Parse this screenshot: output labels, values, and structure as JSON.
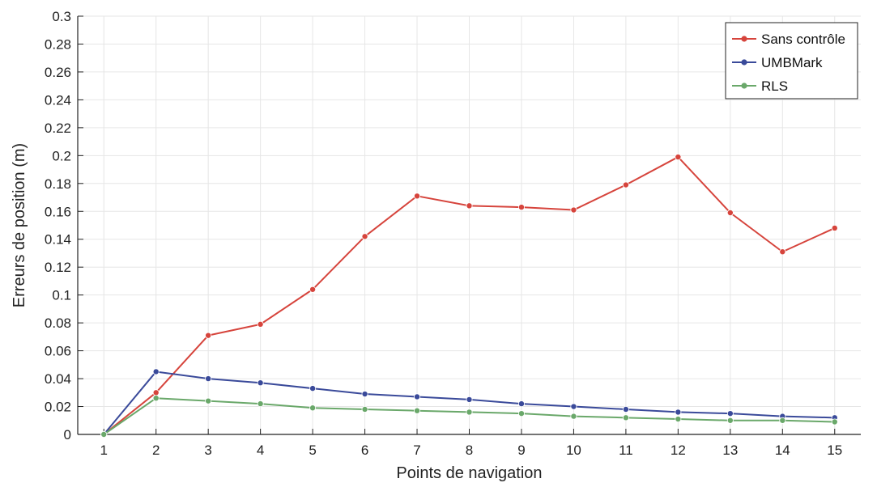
{
  "chart_data": {
    "type": "line",
    "xlabel": "Points de navigation",
    "ylabel": "Erreurs de position (m)",
    "x": [
      1,
      2,
      3,
      4,
      5,
      6,
      7,
      8,
      9,
      10,
      11,
      12,
      13,
      14,
      15
    ],
    "xlim": [
      0.5,
      15.5
    ],
    "ylim": [
      0,
      0.3
    ],
    "x_ticks": [
      "1",
      "2",
      "3",
      "4",
      "5",
      "6",
      "7",
      "8",
      "9",
      "10",
      "11",
      "12",
      "13",
      "14",
      "15"
    ],
    "y_ticks": [
      "0",
      "0.02",
      "0.04",
      "0.06",
      "0.08",
      "0.1",
      "0.12",
      "0.14",
      "0.16",
      "0.18",
      "0.2",
      "0.22",
      "0.24",
      "0.26",
      "0.28",
      "0.3"
    ],
    "grid": true,
    "legend_position": "top-right",
    "series": [
      {
        "name": "Sans contrôle",
        "color": "#d6443c",
        "values": [
          0,
          0.03,
          0.071,
          0.079,
          0.104,
          0.142,
          0.171,
          0.164,
          0.163,
          0.161,
          0.179,
          0.199,
          0.159,
          0.131,
          0.148
        ]
      },
      {
        "name": "UMBMark",
        "color": "#3a4a9a",
        "values": [
          0,
          0.045,
          0.04,
          0.037,
          0.033,
          0.029,
          0.027,
          0.025,
          0.022,
          0.02,
          0.018,
          0.016,
          0.015,
          0.013,
          0.012
        ]
      },
      {
        "name": "RLS",
        "color": "#6aa86a",
        "values": [
          0,
          0.026,
          0.024,
          0.022,
          0.019,
          0.018,
          0.017,
          0.016,
          0.015,
          0.013,
          0.012,
          0.011,
          0.01,
          0.01,
          0.009
        ]
      }
    ]
  }
}
